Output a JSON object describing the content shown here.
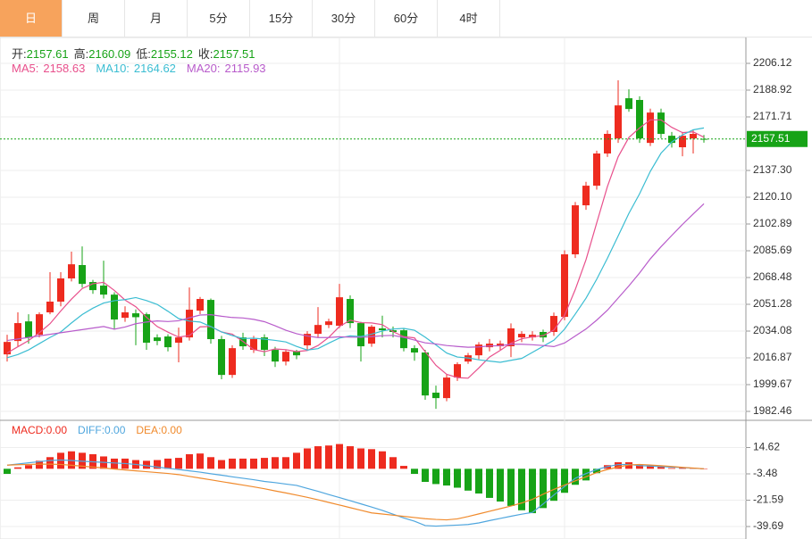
{
  "tabs": [
    "日",
    "周",
    "月",
    "5分",
    "15分",
    "30分",
    "60分",
    "4时"
  ],
  "active_tab": 0,
  "chart_data": [
    {
      "type": "candlestick",
      "up_color": "#ee2b1f",
      "down_color": "#17a317",
      "grid": true,
      "ohlc_labels": [
        "开:",
        "高:",
        "低:",
        "收:"
      ],
      "open": [
        2019.1,
        2027.7,
        2040.3,
        2031.7,
        2046.1,
        2053.0,
        2067.9,
        2076.5,
        2065.6,
        2063.3,
        2057.5,
        2042.6,
        2045.5,
        2044.9,
        2030.0,
        2030.6,
        2026.6,
        2030.0,
        2047.2,
        2054.1,
        2028.9,
        2005.9,
        2030.0,
        2022.0,
        2030.0,
        2022.0,
        2014.5,
        2020.8,
        2024.9,
        2032.3,
        2038.0,
        2037.5,
        2054.7,
        2039.2,
        2026.0,
        2035.8,
        2034.6,
        2034.6,
        2023.1,
        2020.3,
        1994.5,
        1991.0,
        2004.2,
        2014.5,
        2018.5,
        2023.7,
        2024.3,
        2024.3,
        2030.0,
        2030.0,
        2033.5,
        2033.5,
        2043.2,
        2083.4,
        2114.9,
        2127.5,
        2148.2,
        2157.9,
        2183.7,
        2182.6,
        2155.0,
        2174.5,
        2159.6,
        2152.2,
        2157.9,
        2157.61
      ],
      "high": [
        2031.7,
        2046.1,
        2044.9,
        2046.1,
        2071.9,
        2071.9,
        2085.1,
        2088.5,
        2067.0,
        2079.3,
        2059.0,
        2050.0,
        2048.0,
        2046.0,
        2032.0,
        2032.0,
        2036.3,
        2062.1,
        2056.0,
        2055.0,
        2031.0,
        2025.0,
        2033.0,
        2031.0,
        2032.0,
        2024.0,
        2022.0,
        2022.0,
        2034.0,
        2049.5,
        2042.0,
        2064.4,
        2057.0,
        2040.0,
        2038.0,
        2044.0,
        2037.0,
        2036.0,
        2025.0,
        2022.0,
        1999.0,
        2006.0,
        2014.0,
        2020.0,
        2027.0,
        2029.0,
        2028.0,
        2039.0,
        2034.0,
        2034.0,
        2035.0,
        2046.0,
        2086.0,
        2117.0,
        2130.0,
        2150.0,
        2163.0,
        2195.2,
        2189.4,
        2185.0,
        2177.0,
        2177.0,
        2162.0,
        2162.0,
        2163.0,
        2160.09
      ],
      "low": [
        2014.5,
        2024.3,
        2026.0,
        2030.0,
        2044.9,
        2050.0,
        2066.0,
        2062.0,
        2058.0,
        2055.0,
        2035.0,
        2040.0,
        2025.0,
        2022.0,
        2025.0,
        2021.0,
        2014.0,
        2028.0,
        2045.0,
        2026.0,
        2003.1,
        2004.0,
        2022.0,
        2020.0,
        2018.0,
        2011.0,
        2012.0,
        2016.0,
        2022.0,
        2030.0,
        2036.0,
        2036.0,
        2036.0,
        2014.5,
        2024.0,
        2030.0,
        2030.0,
        2021.0,
        2015.0,
        1989.9,
        1984.1,
        1989.0,
        2002.0,
        2013.0,
        2016.0,
        2021.0,
        2022.0,
        2017.4,
        2027.0,
        2028.0,
        2027.0,
        2031.0,
        2041.0,
        2081.0,
        2112.0,
        2125.0,
        2146.0,
        2155.0,
        2175.0,
        2155.0,
        2153.0,
        2158.0,
        2152.0,
        2146.4,
        2148.2,
        2155.12
      ],
      "close": [
        2027.1,
        2039.2,
        2030.0,
        2044.9,
        2053.0,
        2067.9,
        2077.0,
        2064.4,
        2060.4,
        2057.5,
        2041.5,
        2046.1,
        2043.0,
        2026.6,
        2027.7,
        2023.7,
        2030.0,
        2047.8,
        2054.7,
        2028.9,
        2005.9,
        2023.1,
        2024.3,
        2028.9,
        2022.0,
        2014.5,
        2020.8,
        2018.5,
        2032.3,
        2038.0,
        2040.3,
        2055.8,
        2039.2,
        2024.3,
        2036.9,
        2034.6,
        2033.5,
        2023.1,
        2020.3,
        1992.7,
        1991.0,
        2004.2,
        2012.8,
        2018.5,
        2025.4,
        2026.0,
        2026.0,
        2035.8,
        2032.3,
        2031.7,
        2030.0,
        2043.8,
        2083.4,
        2114.9,
        2127.5,
        2148.2,
        2160.8,
        2179.1,
        2176.8,
        2157.9,
        2174.5,
        2160.8,
        2155.0,
        2159.6,
        2160.8,
        2157.51
      ],
      "moving_averages": [
        {
          "name": "MA5:",
          "color": "#e8508c",
          "values": [
            2020,
            2024,
            2028,
            2033,
            2038.8,
            2047.0,
            2054.6,
            2061.4,
            2064.5,
            2065.4,
            2060.2,
            2054.0,
            2049.7,
            2042.9,
            2037.0,
            2033.4,
            2030.2,
            2031.2,
            2036.8,
            2037.0,
            2033.5,
            2032.1,
            2027.4,
            2022.2,
            2020.8,
            2022.6,
            2022.1,
            2020.9,
            2021.6,
            2024.8,
            2030.0,
            2037.0,
            2041.1,
            2039.5,
            2039.3,
            2038.2,
            2033.7,
            2030.5,
            2029.7,
            2020.8,
            2012.1,
            2006.3,
            2004.2,
            2003.8,
            2010.4,
            2017.4,
            2021.7,
            2026.3,
            2029.1,
            2030.4,
            2031.2,
            2034.7,
            2044.2,
            2060.8,
            2079.9,
            2103.6,
            2127.0,
            2146.1,
            2158.5,
            2164.6,
            2169.8,
            2169.8,
            2165.0,
            2161.6,
            2162.1,
            2158.63
          ]
        },
        {
          "name": "MA10:",
          "color": "#3bbdd2",
          "values": [
            2017,
            2019,
            2022,
            2026,
            2030,
            2033.5,
            2039.3,
            2044.7,
            2048.8,
            2052.1,
            2053.6,
            2054.3,
            2055.6,
            2053.7,
            2051.2,
            2046.8,
            2042.1,
            2040.5,
            2039.9,
            2037.0,
            2033.5,
            2031.2,
            2029.3,
            2029.5,
            2028.9,
            2028.1,
            2027.1,
            2024.2,
            2021.9,
            2022.8,
            2026.3,
            2029.6,
            2031.0,
            2030.6,
            2032.1,
            2034.1,
            2035.4,
            2035.8,
            2034.6,
            2030.1,
            2025.2,
            2020.0,
            2017.4,
            2016.8,
            2015.6,
            2014.8,
            2014.0,
            2015.3,
            2016.5,
            2020.4,
            2024.3,
            2028.2,
            2035.3,
            2045.0,
            2055.2,
            2067.4,
            2080.9,
            2095.2,
            2109.7,
            2122.3,
            2136.7,
            2148.4,
            2155.6,
            2160.1,
            2163.4,
            2164.62
          ]
        },
        {
          "name": "MA20:",
          "color": "#b85ccb",
          "values": [
            2028,
            2029,
            2030,
            2031,
            2032,
            2033,
            2034,
            2035,
            2036,
            2037,
            2035.3,
            2036.7,
            2038.8,
            2039.9,
            2040.6,
            2040.2,
            2040.7,
            2042.6,
            2044.4,
            2044.6,
            2043.6,
            2042.8,
            2042.5,
            2041.6,
            2040.1,
            2037.5,
            2034.6,
            2032.4,
            2030.9,
            2029.9,
            2029.9,
            2030.4,
            2030.2,
            2030.1,
            2030.5,
            2031.1,
            2031.3,
            2030.0,
            2028.3,
            2026.5,
            2025.8,
            2024.8,
            2024.2,
            2023.7,
            2023.9,
            2024.5,
            2024.7,
            2025.6,
            2025.6,
            2025.3,
            2024.8,
            2024.1,
            2026.4,
            2030.9,
            2035.4,
            2041.1,
            2047.5,
            2055.3,
            2063.1,
            2071.4,
            2080.5,
            2088.3,
            2095.5,
            2102.6,
            2109.3,
            2115.93
          ]
        }
      ],
      "ylim": [
        1977.3,
        2221.6
      ],
      "yticks": [
        2206.12,
        2188.92,
        2171.71,
        {
          "value": 2137.3,
          "label": "2137.30"
        },
        {
          "value": 2120.1,
          "label": "2120.10"
        },
        2102.89,
        2085.69,
        2068.48,
        2051.28,
        2034.08,
        2016.87,
        1999.67,
        1982.46
      ]
    },
    {
      "type": "macd",
      "up_color": "#ee2b1f",
      "down_color": "#17a317",
      "grid": true,
      "series": [
        {
          "name": "MACD:",
          "color": "#ee2b1f",
          "last_label": "0.00",
          "values": [
            -3.5,
            1,
            2.5,
            5.5,
            8,
            11,
            12,
            11,
            10,
            8.5,
            7,
            7,
            6,
            5.5,
            6,
            7,
            7.5,
            10,
            10.5,
            8,
            6,
            7,
            7,
            7,
            7.5,
            8,
            8,
            11,
            14,
            15.5,
            16,
            17,
            15.5,
            14,
            13.5,
            12,
            8,
            2,
            -3.5,
            -9,
            -10.5,
            -11.5,
            -13,
            -15,
            -17,
            -20,
            -22.5,
            -25.5,
            -28.5,
            -30.5,
            -27,
            -22,
            -16.5,
            -11,
            -8,
            -3,
            2.5,
            4.5,
            4.5,
            3,
            2.5,
            1.5,
            0.5,
            0.5,
            0.3,
            0
          ]
        },
        {
          "name": "DIFF:",
          "color": "#4fa6de",
          "last_label": "0.00",
          "values": [
            2.5,
            3.3,
            4.1,
            4.9,
            5.7,
            6.0,
            5.7,
            5.2,
            4.8,
            4.4,
            4.0,
            3.6,
            3.0,
            2.1,
            1.2,
            0.3,
            -0.5,
            -1.4,
            -2.3,
            -3.4,
            -4.4,
            -5.5,
            -6.5,
            -7.5,
            -8.7,
            -9.5,
            -10.5,
            -11.4,
            -13.5,
            -15.5,
            -17.7,
            -19.8,
            -21.9,
            -24.1,
            -26.3,
            -28.6,
            -31.2,
            -33.8,
            -36.0,
            -39.0,
            -39.4,
            -39.0,
            -38.7,
            -38.3,
            -37.2,
            -35.6,
            -34.1,
            -32.6,
            -31.2,
            -30.0,
            -24.2,
            -18.0,
            -12.2,
            -6.5,
            -3.3,
            -0.5,
            1.5,
            2.9,
            3.0,
            2.2,
            1.9,
            1.5,
            1.2,
            0.8,
            0.4,
            0.0
          ]
        },
        {
          "name": "DEA:",
          "color": "#f08a2c",
          "last_label": "0.00",
          "values": [
            2.5,
            2.8,
            3.0,
            3.2,
            3.2,
            3.0,
            2.4,
            1.8,
            1.2,
            0.6,
            -0.2,
            -0.8,
            -1.4,
            -2.0,
            -2.6,
            -3.2,
            -4.0,
            -5.2,
            -6.4,
            -7.6,
            -8.8,
            -10.0,
            -11.2,
            -12.4,
            -13.7,
            -15.2,
            -16.6,
            -18.1,
            -19.6,
            -21.3,
            -23.1,
            -24.9,
            -26.7,
            -28.5,
            -30.3,
            -31.1,
            -31.9,
            -32.7,
            -33.5,
            -34.3,
            -34.8,
            -35.1,
            -34.4,
            -32.8,
            -31.0,
            -29.2,
            -27.4,
            -25.6,
            -23.5,
            -21.0,
            -17.5,
            -14.2,
            -11.2,
            -8.3,
            -5.5,
            -2.6,
            -0.5,
            1.2,
            2.6,
            3.0,
            2.6,
            2.1,
            1.6,
            1.0,
            0.5,
            0.0
          ]
        }
      ],
      "ylim": [
        -45.8,
        32.7
      ],
      "yticks": [
        14.62,
        -3.48,
        -21.59,
        -39.69
      ]
    }
  ]
}
